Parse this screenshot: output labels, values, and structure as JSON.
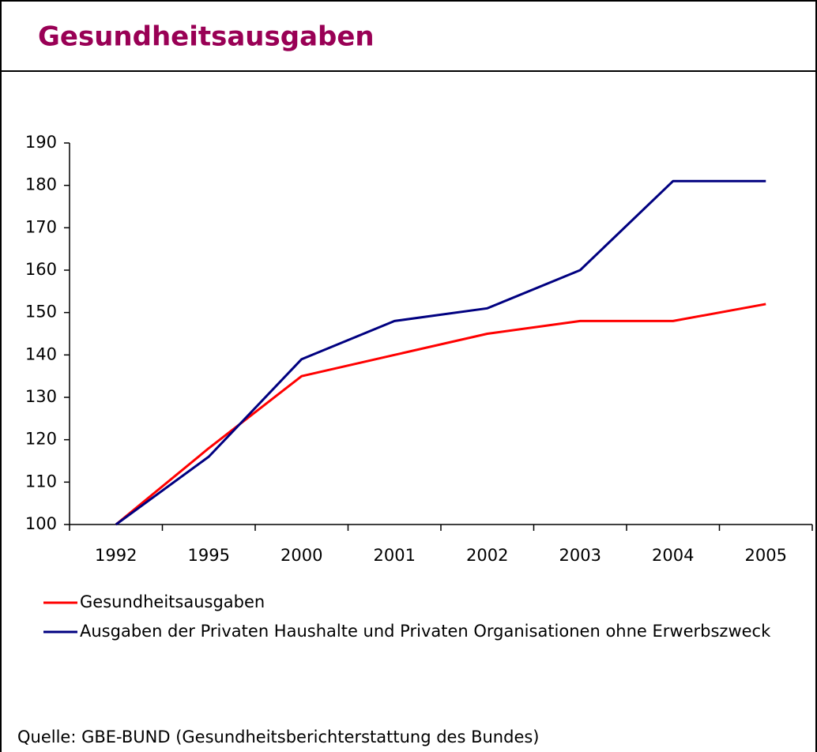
{
  "chart_data": {
    "type": "line",
    "title": "Gesundheitsausgaben",
    "categories": [
      "1992",
      "1995",
      "2000",
      "2001",
      "2002",
      "2003",
      "2004",
      "2005"
    ],
    "series": [
      {
        "name": "Gesundheitsausgaben",
        "color": "#ff0000",
        "values": [
          100,
          118,
          135,
          140,
          145,
          148,
          148,
          152
        ]
      },
      {
        "name": "Ausgaben der Privaten Haushalte und Privaten Organisationen ohne Erwerbszweck",
        "color": "#000080",
        "values": [
          100,
          116,
          139,
          148,
          151,
          160,
          181,
          181
        ]
      }
    ],
    "ylim": [
      100,
      190
    ],
    "yticks": [
      100,
      110,
      120,
      130,
      140,
      150,
      160,
      170,
      180,
      190
    ],
    "source": "Quelle: GBE-BUND (Gesundheitsberichterstattung des Bundes)"
  }
}
